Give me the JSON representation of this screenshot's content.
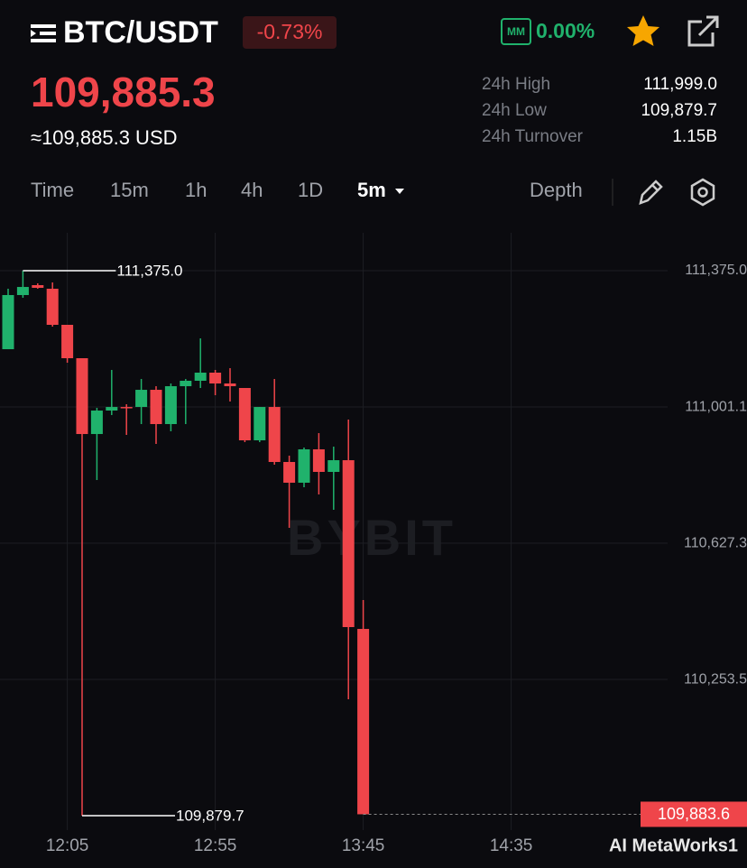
{
  "header": {
    "symbol": "BTC/USDT",
    "change": "-0.73%",
    "mm": "MM",
    "mm_value": "0.00%"
  },
  "price": {
    "last": "109,885.3",
    "usd": "≈109,885.3 USD"
  },
  "stats": [
    {
      "label": "24h High",
      "value": "111,999.0"
    },
    {
      "label": "24h Low",
      "value": "109,879.7"
    },
    {
      "label": "24h Turnover",
      "value": "1.15B"
    }
  ],
  "tabs": [
    "Time",
    "15m",
    "1h",
    "4h",
    "1D",
    "5m",
    "Depth"
  ],
  "active_tab": "5m",
  "chart_data": {
    "type": "candlestick",
    "categories": [
      null,
      null,
      null,
      null,
      "12:05",
      null,
      null,
      null,
      null,
      null,
      null,
      null,
      null,
      null,
      "12:55",
      null,
      null,
      null,
      null,
      null,
      null,
      null,
      null,
      null,
      "13:45",
      null,
      null,
      null,
      null,
      null,
      null,
      null,
      null,
      null,
      "14:35"
    ],
    "open": [
      111159.6,
      111308.2,
      111335.4,
      111325.5,
      111226.5,
      111134.9,
      110926.9,
      110991.3,
      111001.1,
      111001.2,
      111048.2,
      110954.2,
      111058.1,
      111073.0,
      111095.3,
      111065.6,
      111053.2,
      110909.6,
      111001.1,
      110850.2,
      110793.3,
      110884.9,
      110823.0,
      110855.1,
      110392.2,
      null,
      null,
      null,
      null,
      null,
      null,
      null,
      null,
      null,
      null
    ],
    "high": [
      111325.5,
      111375.0,
      111340.3,
      111342.8,
      111226.5,
      111134.9,
      110998.7,
      111102.7,
      111008.6,
      111077.9,
      111058.1,
      111065.6,
      111077.9,
      111189.3,
      111102.7,
      111107.6,
      111053.2,
      111001.1,
      111077.9,
      110867.5,
      110889.8,
      110929.4,
      110892.3,
      110966.5,
      110471.4,
      null,
      null,
      null,
      null,
      null,
      null,
      null,
      null,
      null,
      null
    ],
    "low": [
      111159.6,
      111300.7,
      111325.5,
      111221.5,
      111122.5,
      109879.7,
      110800.7,
      110978.9,
      110924.5,
      110954.2,
      110899.7,
      110934.4,
      110954.2,
      111053.2,
      111033.4,
      111016.1,
      110904.7,
      110904.7,
      110842.8,
      110669.5,
      110780.9,
      110761.1,
      110719.0,
      110199.1,
      109883.6,
      null,
      null,
      null,
      null,
      null,
      null,
      null,
      null,
      null,
      null
    ],
    "close": [
      111308.2,
      111330.4,
      111328.0,
      111226.5,
      111134.9,
      110926.9,
      110991.3,
      111001.1,
      110998.7,
      111048.2,
      110954.2,
      111058.1,
      111073.0,
      111095.3,
      111065.6,
      111058.1,
      110909.6,
      111001.1,
      110850.2,
      110793.3,
      110884.9,
      110823.0,
      110855.1,
      110397.2,
      109883.6,
      null,
      null,
      null,
      null,
      null,
      null,
      null,
      null,
      null,
      null
    ],
    "up_color": "#20b26c",
    "down_color": "#ef454a",
    "ylim": [
      109840.2,
      111479.0
    ],
    "yticks": [
      {
        "value": 111375.0,
        "label": "111,375.0"
      },
      {
        "value": 111001.1,
        "label": "111,001.1"
      },
      {
        "value": 110627.3,
        "label": "110,627.3"
      },
      {
        "value": 110253.5,
        "label": "110,253.5"
      }
    ],
    "grid": true,
    "annotations": [
      {
        "index": 1,
        "value": 111375.0,
        "label": "111,375.0"
      },
      {
        "index": 5,
        "value": 109879.7,
        "label": "109,879.7"
      }
    ],
    "last_price": {
      "value": 109883.6,
      "label": "109,883.6"
    },
    "watermark": "BYBIT"
  },
  "watermark": "AI MetaWorks1"
}
